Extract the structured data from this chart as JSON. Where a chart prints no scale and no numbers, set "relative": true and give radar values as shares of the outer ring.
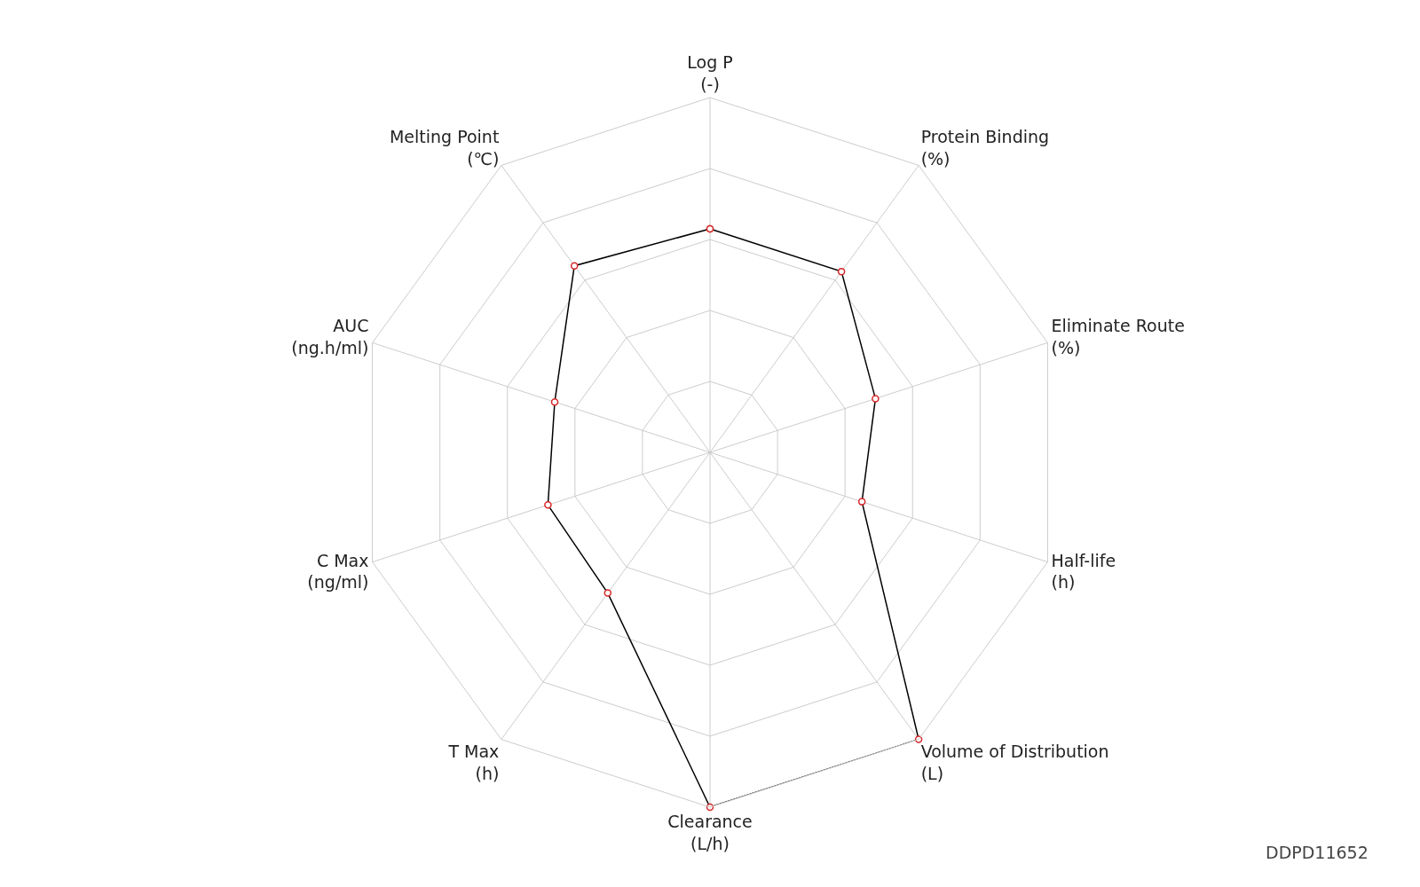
{
  "chart_data": {
    "type": "radar",
    "relative": true,
    "categories": [
      "Log P\n(-)",
      "Protein Binding\n(%)",
      "Eliminate Route\n(%)",
      "Half-life\n(h)",
      "Volume of Distribution\n(L)",
      "Clearance\n(L/h)",
      "T Max\n(h)",
      "C Max\n(ng/ml)",
      "AUC\n(ng.h/ml)",
      "Melting Point\n(℃)"
    ],
    "series": [
      {
        "color": "#000000",
        "values": [
          0.63,
          0.63,
          0.49,
          0.45,
          1.0,
          1.0,
          0.49,
          0.48,
          0.46,
          0.65
        ]
      }
    ],
    "marker": "circle",
    "grid": true,
    "annotations": [
      "DDPD11652"
    ]
  }
}
